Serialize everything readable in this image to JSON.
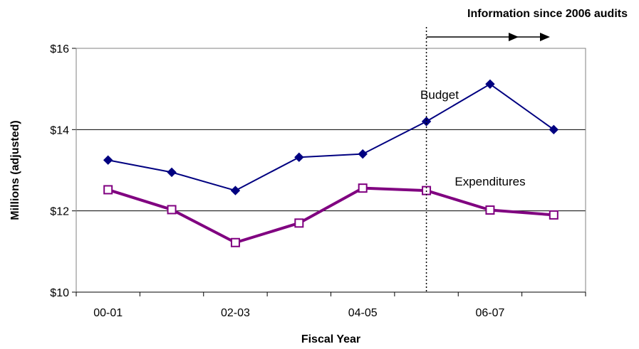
{
  "chart_data": {
    "type": "line",
    "title": "",
    "xlabel": "Fiscal Year",
    "ylabel": "Millions (adjusted)",
    "categories": [
      "00-01",
      "01-02",
      "02-03",
      "03-04",
      "04-05",
      "05-06",
      "06-07",
      "07-08"
    ],
    "x_tick_labels": [
      "00-01",
      "",
      "02-03",
      "",
      "04-05",
      "",
      "06-07",
      ""
    ],
    "ylim": [
      10,
      16
    ],
    "y_ticks": [
      10,
      12,
      14,
      16
    ],
    "y_tick_labels": [
      "$10",
      "$12",
      "$14",
      "$16"
    ],
    "grid": true,
    "series": [
      {
        "name": "Budget",
        "values": [
          13.25,
          12.95,
          12.5,
          13.32,
          13.4,
          14.2,
          15.12,
          14.0
        ],
        "color": "#000080",
        "marker": "diamond"
      },
      {
        "name": "Expenditures",
        "values": [
          12.52,
          12.03,
          11.22,
          11.7,
          12.56,
          12.5,
          12.02,
          11.9
        ],
        "color": "#800080",
        "marker": "square-open"
      }
    ],
    "annotations": [
      {
        "text": "Information since 2006 audits",
        "x": 5.5
      }
    ]
  }
}
